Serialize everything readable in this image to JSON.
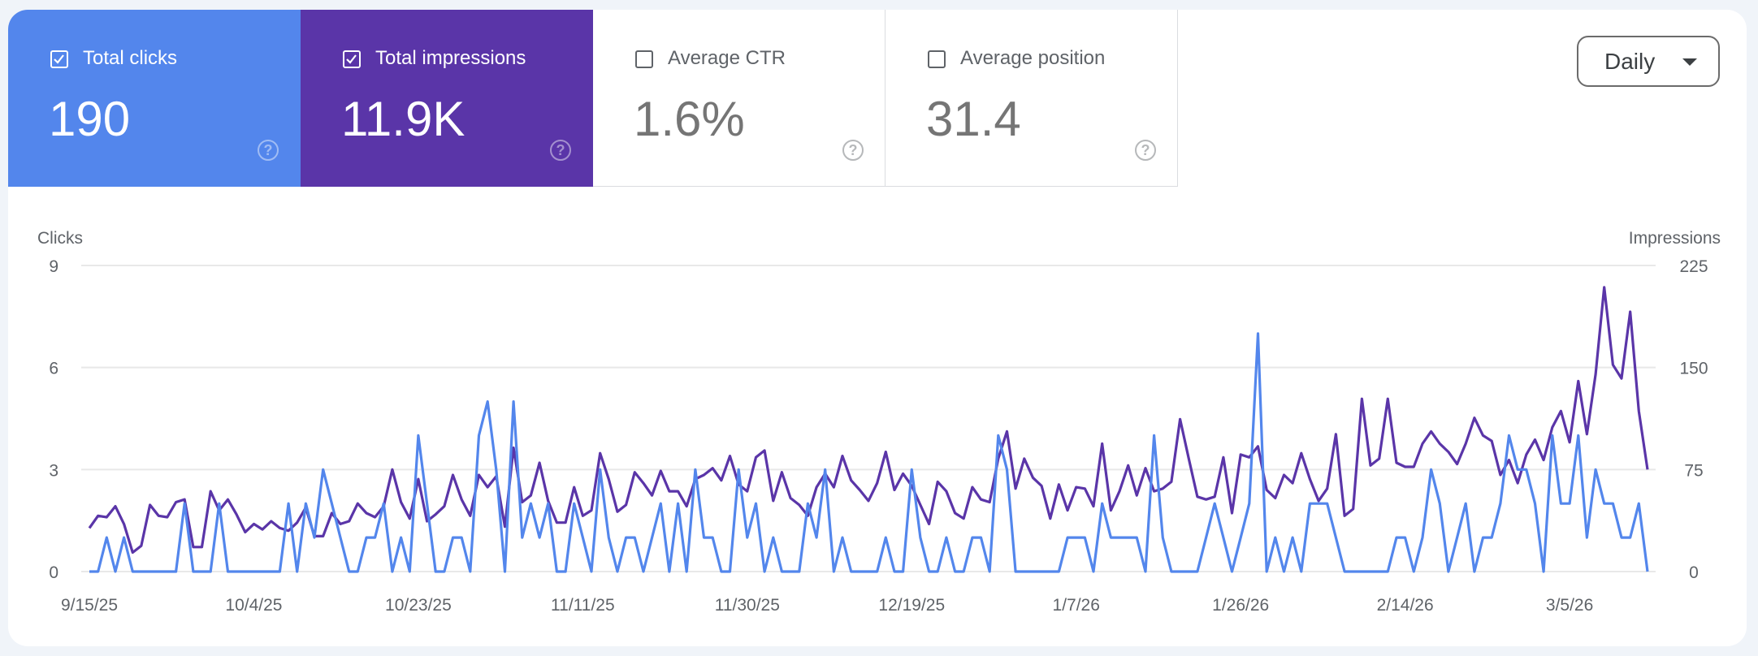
{
  "metrics": [
    {
      "label": "Total clicks",
      "value": "190",
      "checked": true,
      "color": "#5386ec",
      "help_icon": "question-circle-icon"
    },
    {
      "label": "Total impressions",
      "value": "11.9K",
      "checked": true,
      "color": "#5a35a8",
      "help_icon": "question-circle-icon"
    },
    {
      "label": "Average CTR",
      "value": "1.6%",
      "checked": false,
      "help_icon": "question-circle-icon"
    },
    {
      "label": "Average position",
      "value": "31.4",
      "checked": false,
      "help_icon": "question-circle-icon"
    }
  ],
  "granularity": {
    "selected": "Daily",
    "icon": "caret-down-icon"
  },
  "chart_data": {
    "type": "line",
    "grid": true,
    "x_start": "9/15/25",
    "x_end": "3/14/26",
    "x_tick_labels": [
      "9/15/25",
      "10/4/25",
      "10/23/25",
      "11/11/25",
      "11/30/25",
      "12/19/25",
      "1/7/26",
      "1/26/26",
      "2/14/26",
      "3/5/26"
    ],
    "y_left": {
      "label": "Clicks",
      "ticks": [
        "0",
        "3",
        "6",
        "9"
      ],
      "range": [
        0,
        9
      ]
    },
    "y_right": {
      "label": "Impressions",
      "ticks": [
        "0",
        "75",
        "150",
        "225"
      ],
      "range": [
        0,
        225
      ]
    },
    "series": [
      {
        "name": "Clicks",
        "axis": "left",
        "color": "#5386ec",
        "values": [
          0,
          0,
          1,
          0,
          1,
          0,
          0,
          0,
          0,
          0,
          0,
          2,
          0,
          0,
          0,
          2,
          0,
          0,
          0,
          0,
          0,
          0,
          0,
          2,
          0,
          2,
          1,
          3,
          2,
          1,
          0,
          0,
          1,
          1,
          2,
          0,
          1,
          0,
          4,
          2,
          0,
          0,
          1,
          1,
          0,
          4,
          5,
          3,
          0,
          5,
          1,
          2,
          1,
          2,
          0,
          0,
          2,
          1,
          0,
          3,
          1,
          0,
          1,
          1,
          0,
          1,
          2,
          0,
          2,
          0,
          3,
          1,
          1,
          0,
          0,
          3,
          1,
          2,
          0,
          1,
          0,
          0,
          0,
          2,
          1,
          3,
          0,
          1,
          0,
          0,
          0,
          0,
          1,
          0,
          0,
          3,
          1,
          0,
          0,
          1,
          0,
          0,
          1,
          1,
          0,
          4,
          3,
          0,
          0,
          0,
          0,
          0,
          0,
          1,
          1,
          1,
          0,
          2,
          1,
          1,
          1,
          1,
          0,
          4,
          1,
          0,
          0,
          0,
          0,
          1,
          2,
          1,
          0,
          1,
          2,
          7,
          0,
          1,
          0,
          1,
          0,
          2,
          2,
          2,
          1,
          0,
          0,
          0,
          0,
          0,
          0,
          1,
          1,
          0,
          1,
          3,
          2,
          0,
          1,
          2,
          0,
          1,
          1,
          2,
          4,
          3,
          3,
          2,
          0,
          4,
          2,
          2,
          4,
          1,
          3,
          2,
          2,
          1,
          1,
          2,
          0
        ]
      },
      {
        "name": "Impressions",
        "axis": "right",
        "color": "#5a35a8",
        "values": [
          32,
          41,
          40,
          48,
          35,
          14,
          19,
          49,
          41,
          40,
          51,
          53,
          18,
          18,
          59,
          45,
          53,
          42,
          29,
          35,
          31,
          37,
          32,
          30,
          36,
          47,
          26,
          26,
          43,
          35,
          37,
          50,
          43,
          40,
          48,
          75,
          51,
          39,
          68,
          37,
          42,
          48,
          71,
          53,
          41,
          71,
          62,
          70,
          33,
          91,
          51,
          56,
          80,
          52,
          36,
          36,
          62,
          41,
          45,
          87,
          68,
          44,
          49,
          73,
          65,
          56,
          74,
          59,
          59,
          48,
          68,
          71,
          76,
          67,
          85,
          64,
          59,
          84,
          89,
          52,
          73,
          54,
          49,
          41,
          62,
          72,
          62,
          85,
          67,
          60,
          52,
          65,
          88,
          60,
          72,
          63,
          49,
          35,
          66,
          59,
          43,
          39,
          62,
          53,
          51,
          83,
          103,
          61,
          83,
          69,
          63,
          39,
          64,
          45,
          62,
          61,
          48,
          94,
          45,
          59,
          78,
          56,
          76,
          59,
          61,
          66,
          112,
          83,
          55,
          53,
          55,
          84,
          43,
          86,
          84,
          92,
          60,
          54,
          71,
          65,
          87,
          68,
          52,
          61,
          101,
          41,
          46,
          127,
          78,
          83,
          127,
          80,
          77,
          77,
          94,
          103,
          94,
          88,
          79,
          94,
          113,
          100,
          96,
          71,
          82,
          65,
          86,
          97,
          82,
          106,
          118,
          95,
          140,
          101,
          145,
          209,
          152,
          142,
          191,
          118,
          75
        ]
      }
    ]
  }
}
